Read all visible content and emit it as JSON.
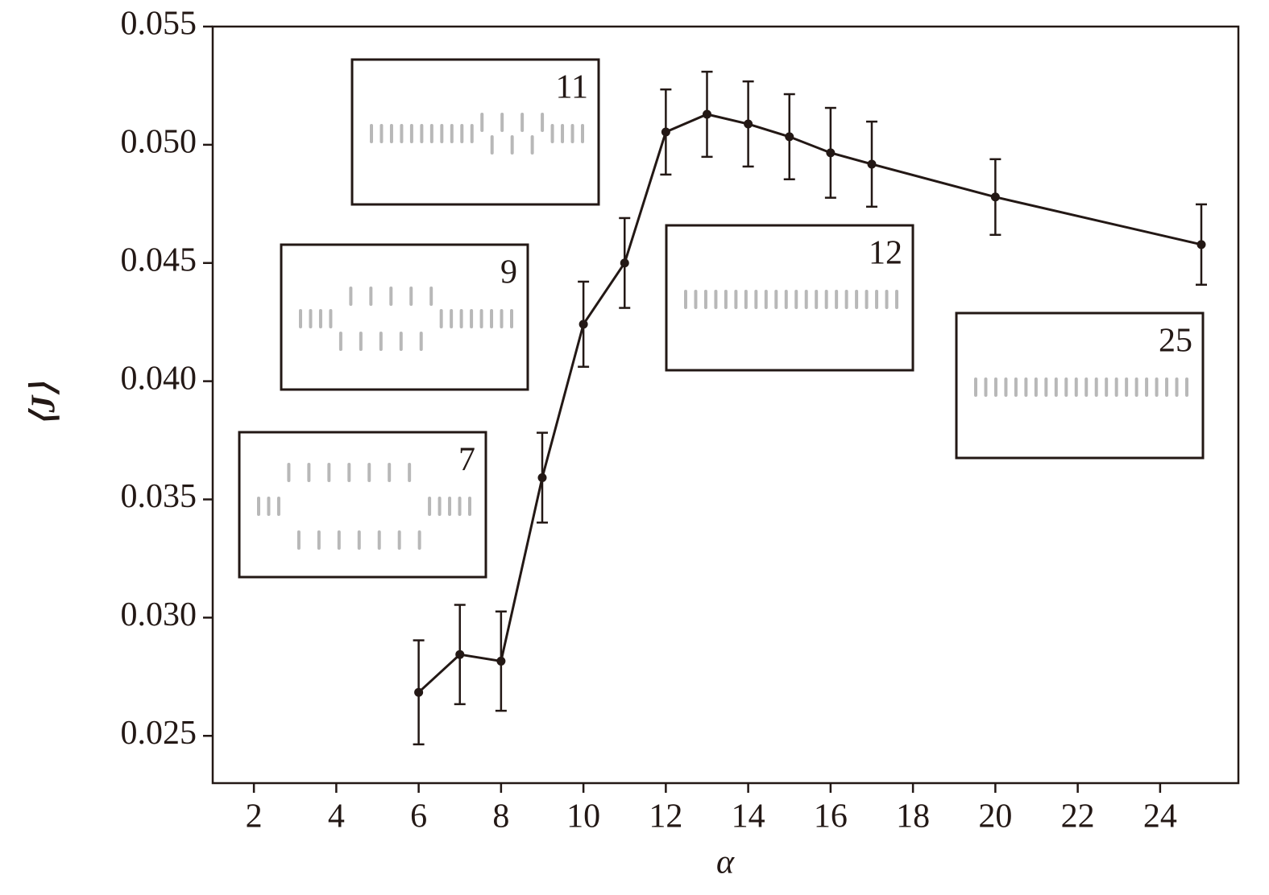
{
  "chart_data": {
    "type": "line",
    "xlabel": "α",
    "ylabel": "⟨J⟩",
    "x": [
      6,
      7,
      8,
      9,
      10,
      11,
      12,
      13,
      14,
      15,
      16,
      17,
      20,
      25
    ],
    "series": [
      {
        "color": "#231815",
        "values": [
          0.02684,
          0.02844,
          0.02816,
          0.03592,
          0.04241,
          0.045,
          0.05054,
          0.05129,
          0.05088,
          0.05034,
          0.04966,
          0.04918,
          0.04779,
          0.04578
        ],
        "errors": [
          0.0022,
          0.0021,
          0.0021,
          0.0019,
          0.0018,
          0.0019,
          0.0018,
          0.0018,
          0.0018,
          0.0018,
          0.0019,
          0.0018,
          0.0016,
          0.0017
        ]
      }
    ],
    "xlim": [
      1,
      25.9
    ],
    "ylim": [
      0.023,
      0.055
    ],
    "xticks": [
      2,
      4,
      6,
      8,
      10,
      12,
      14,
      16,
      18,
      20,
      22,
      24
    ],
    "yticks": [
      0.025,
      {
        "value": 0.03,
        "label": "0.030"
      },
      0.035,
      {
        "value": 0.04,
        "label": "0.040"
      },
      0.045,
      {
        "value": 0.05,
        "label": "0.050"
      },
      0.055
    ],
    "annotations": [
      "11",
      "9",
      "7",
      "12",
      "25"
    ]
  }
}
